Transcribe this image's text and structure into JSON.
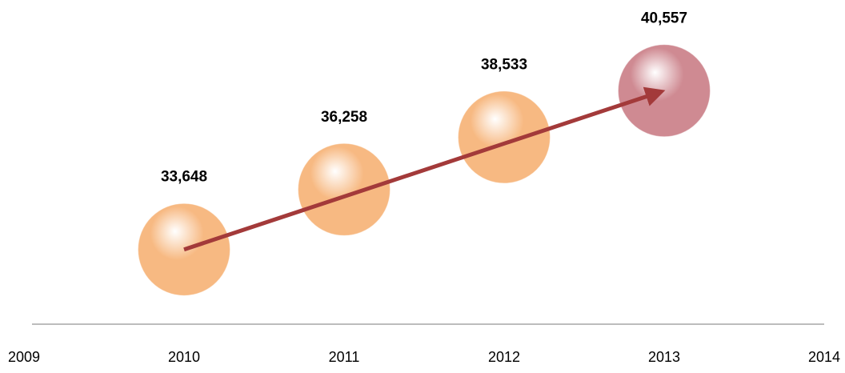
{
  "chart_data": {
    "type": "bubble",
    "x": [
      2010,
      2011,
      2012,
      2013
    ],
    "values": [
      33648,
      36258,
      38533,
      40557
    ],
    "value_labels": [
      "33,648",
      "36,258",
      "38,533",
      "40,557"
    ],
    "colors": [
      "#f7b982",
      "#f7b982",
      "#f7b982",
      "#cf8a92"
    ],
    "trend_color": "#a33a3a",
    "xlim": [
      2009,
      2014
    ],
    "xticks": [
      2009,
      2010,
      2011,
      2012,
      2013,
      2014
    ],
    "ylim": [
      30400,
      44500
    ]
  }
}
